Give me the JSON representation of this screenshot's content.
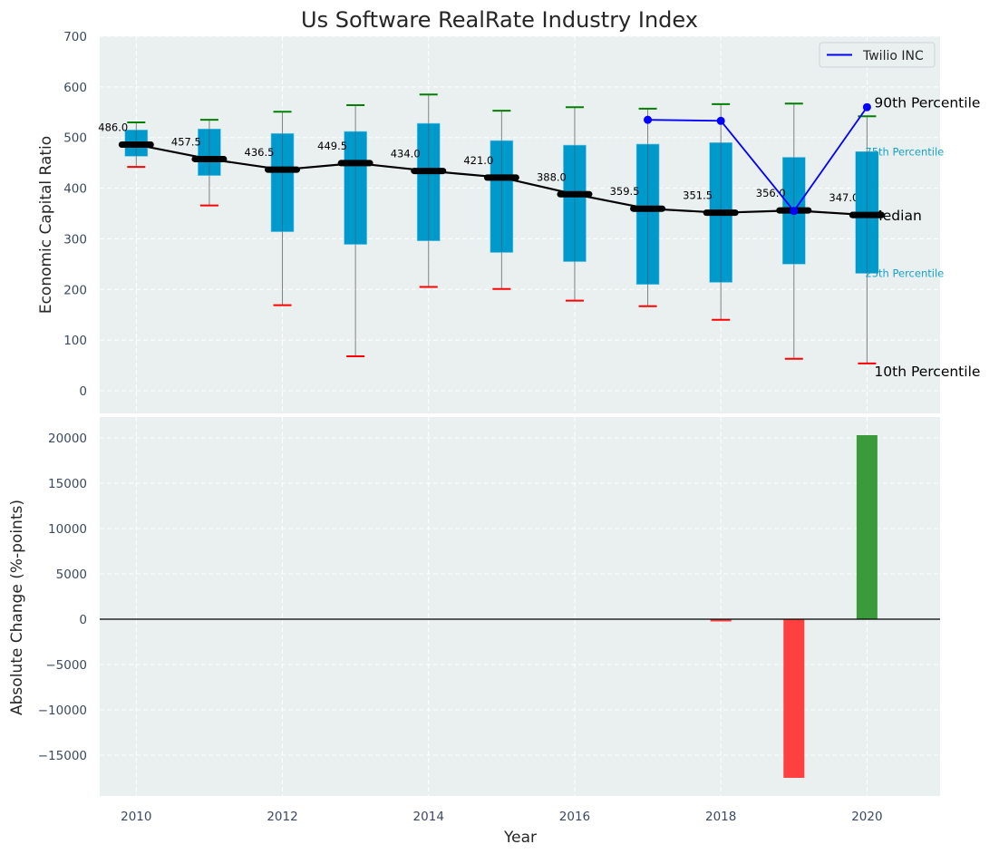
{
  "chart_data": [
    {
      "type": "box",
      "title": "Us Software RealRate Industry Index",
      "xlabel": "",
      "ylabel": "Economic Capital Ratio",
      "ylim": [
        -50,
        700
      ],
      "xlim": [
        2009.5,
        2021.0
      ],
      "grid": true,
      "yticks": [
        0,
        100,
        200,
        300,
        400,
        500,
        600,
        700
      ],
      "categories": [
        2010,
        2011,
        2012,
        2013,
        2014,
        2015,
        2016,
        2017,
        2018,
        2019,
        2020
      ],
      "percentile_10": [
        442,
        366,
        169,
        68,
        205,
        201,
        178,
        167,
        140,
        63,
        54
      ],
      "percentile_25": [
        463,
        425,
        314,
        289,
        296,
        273,
        255,
        210,
        214,
        250,
        232
      ],
      "median": [
        486.0,
        457.5,
        436.5,
        449.5,
        434.0,
        421.0,
        388.0,
        359.5,
        351.5,
        356.0,
        347.0
      ],
      "percentile_75": [
        515,
        517,
        508,
        512,
        528,
        494,
        485,
        487,
        490,
        461,
        472
      ],
      "percentile_90": [
        530,
        535,
        551,
        564,
        585,
        553,
        560,
        557,
        566,
        567,
        542
      ],
      "median_labels": [
        "486.0",
        "457.5",
        "436.5",
        "449.5",
        "434.0",
        "421.0",
        "388.0",
        "359.5",
        "351.5",
        "356.0",
        "347.0"
      ],
      "series": [
        {
          "name": "Twilio INC",
          "x": [
            2017,
            2018,
            2019,
            2020
          ],
          "values": [
            535,
            533,
            355,
            560
          ],
          "color": "#0000ff"
        }
      ],
      "legend": {
        "position": "top-right",
        "entries": [
          "Twilio INC"
        ]
      },
      "annotations": {
        "p90": "90th Percentile",
        "p75": "75th Percentile",
        "median": "Median",
        "p25": "25th Percentile",
        "p10": "10th Percentile"
      },
      "colors": {
        "box": "#0099cc",
        "median": "#000000",
        "whisker_top": "#008000",
        "whisker_bottom": "#ff0000",
        "whisker_line": "#808080"
      }
    },
    {
      "type": "bar",
      "xlabel": "Year",
      "ylabel": "Absolute Change (%-points)",
      "ylim": [
        -19500,
        22000
      ],
      "xlim": [
        2009.5,
        2021.0
      ],
      "grid": true,
      "yticks": [
        -15000,
        -10000,
        -5000,
        0,
        5000,
        10000,
        15000,
        20000
      ],
      "ytick_labels": [
        "−15000",
        "−10000",
        "−5000",
        "0",
        "5000",
        "10000",
        "15000",
        "20000"
      ],
      "xticks": [
        2010,
        2012,
        2014,
        2016,
        2018,
        2020
      ],
      "x": [
        2018,
        2019,
        2020
      ],
      "values": [
        -250,
        -17500,
        20300
      ],
      "colors": {
        "positive": "#3a9b3a",
        "negative": "#ff4040"
      }
    }
  ]
}
